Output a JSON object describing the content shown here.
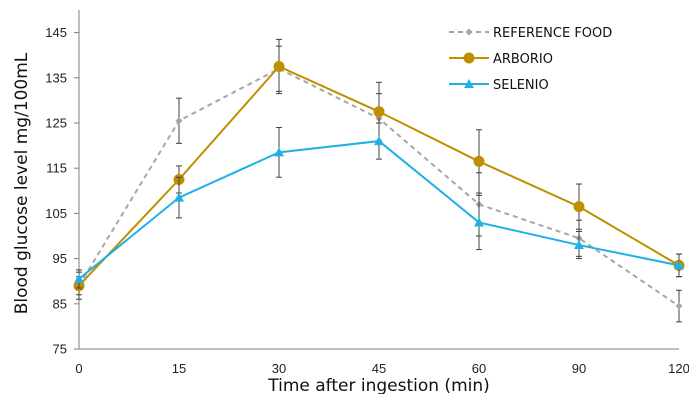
{
  "chart_data": {
    "type": "line",
    "title": "",
    "xlabel": "Time after ingestion (min)",
    "ylabel": "Blood glucose level mg/100mL",
    "categories": [
      "0",
      "15",
      "30",
      "45",
      "60",
      "90",
      "120"
    ],
    "ylim": [
      75,
      150
    ],
    "yticks": [
      "75",
      "85",
      "95",
      "105",
      "115",
      "125",
      "135",
      "145"
    ],
    "grid": false,
    "legend_position": "top-right",
    "series": [
      {
        "name": "REFERENCE FOOD",
        "color": "#a6a6a6",
        "line_style": "dashed",
        "marker": "diamond",
        "values": [
          89,
          125.5,
          137,
          126,
          107,
          99.5,
          84.5
        ],
        "errors": [
          3,
          5,
          5,
          5.5,
          7,
          4,
          3.5
        ]
      },
      {
        "name": "ARBORIO",
        "color": "#bf8f00",
        "line_style": "solid",
        "marker": "circle",
        "values": [
          89,
          112.5,
          137.5,
          127.5,
          116.5,
          106.5,
          93.5
        ],
        "errors": [
          2,
          3,
          6,
          6.5,
          7,
          5,
          2.5
        ]
      },
      {
        "name": "SELENIO",
        "color": "#1fb0e6",
        "line_style": "solid",
        "marker": "triangle",
        "values": [
          90.5,
          108.5,
          118.5,
          121,
          103,
          98,
          93.5
        ],
        "errors": [
          2,
          4.5,
          5.5,
          4,
          6,
          3,
          2.5
        ]
      }
    ]
  }
}
